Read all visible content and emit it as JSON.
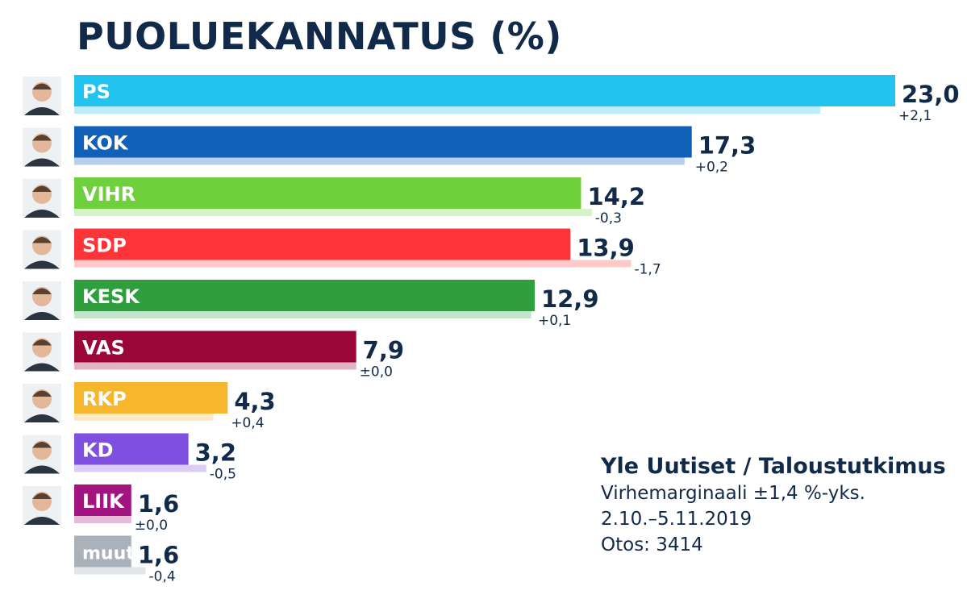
{
  "title": "PUOLUEKANNATUS (%)",
  "source": {
    "title": "Yle Uutiset / Taloustutkimus",
    "lines": [
      "Virhemarginaali ±1,4 %-yks.",
      "2.10.–5.11.2019",
      "Otos: 3414"
    ]
  },
  "chart_data": {
    "type": "bar",
    "orientation": "horizontal",
    "title": "PUOLUEKANNATUS (%)",
    "xlabel": "",
    "ylabel": "",
    "xlim": [
      0,
      23
    ],
    "grid": false,
    "categories": [
      "PS",
      "KOK",
      "VIHR",
      "SDP",
      "KESK",
      "VAS",
      "RKP",
      "KD",
      "LIIK",
      "muut"
    ],
    "values": [
      23.0,
      17.3,
      14.2,
      13.9,
      12.9,
      7.9,
      4.3,
      3.2,
      1.6,
      1.6
    ],
    "value_labels": [
      "23,0",
      "17,3",
      "14,2",
      "13,9",
      "12,9",
      "7,9",
      "4,3",
      "3,2",
      "1,6",
      "1,6"
    ],
    "changes": [
      2.1,
      0.2,
      -0.3,
      -1.7,
      0.1,
      0.0,
      0.4,
      -0.5,
      0.0,
      -0.4
    ],
    "change_labels": [
      "+2,1",
      "+0,2",
      "-0,3",
      "-1,7",
      "+0,1",
      "±0,0",
      "+0,4",
      "-0,5",
      "±0,0",
      "-0,4"
    ],
    "previous_values": [
      20.9,
      17.1,
      14.5,
      15.6,
      12.8,
      7.9,
      3.9,
      3.7,
      1.6,
      2.0
    ],
    "colors": [
      "#22c3ee",
      "#1160b8",
      "#6ed03c",
      "#ff3438",
      "#2e9f3c",
      "#9a0638",
      "#f7b72c",
      "#7f4fe0",
      "#a41481",
      "#a9b2ba"
    ],
    "previous_colors": [
      "#bdedfa",
      "#b7cfeb",
      "#d6f2c8",
      "#ffc8c9",
      "#c2e5c7",
      "#e0b4c3",
      "#fdeac4",
      "#dccdf6",
      "#e6bad8",
      "#e2e6e9"
    ],
    "avatars": [
      true,
      true,
      true,
      true,
      true,
      true,
      true,
      true,
      true,
      false
    ]
  }
}
